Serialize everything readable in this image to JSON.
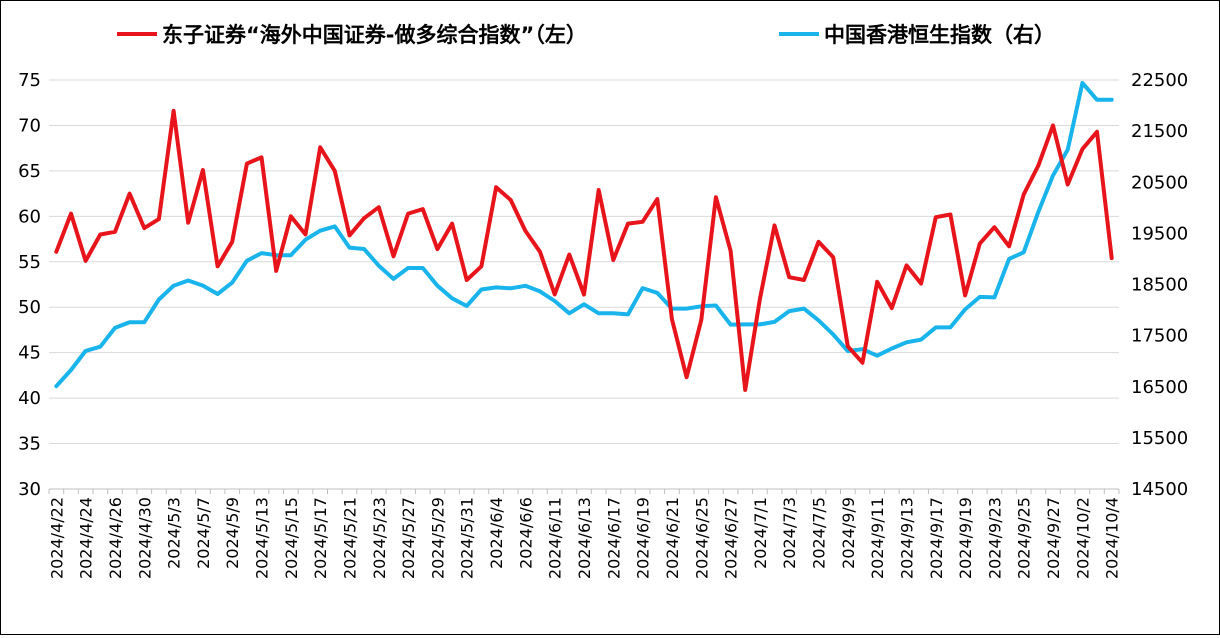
{
  "chart_data": {
    "type": "line",
    "title": "",
    "legend_position": "top",
    "grid": true,
    "colors": {
      "left_series": "#e8141b",
      "right_series": "#19b4ec",
      "grid": "#d9d9d9"
    },
    "x": [
      "2024/4/22",
      "2024/4/23",
      "2024/4/24",
      "2024/4/25",
      "2024/4/26",
      "2024/4/29",
      "2024/4/30",
      "2024/5/2",
      "2024/5/3",
      "2024/5/6",
      "2024/5/7",
      "2024/5/8",
      "2024/5/9",
      "2024/5/10",
      "2024/5/13",
      "2024/5/14",
      "2024/5/15",
      "2024/5/16",
      "2024/5/17",
      "2024/5/20",
      "2024/5/21",
      "2024/5/22",
      "2024/5/23",
      "2024/5/24",
      "2024/5/27",
      "2024/5/28",
      "2024/5/29",
      "2024/5/30",
      "2024/5/31",
      "2024/6/3",
      "2024/6/4",
      "2024/6/5",
      "2024/6/6",
      "2024/6/7",
      "2024/6/11",
      "2024/6/12",
      "2024/6/13",
      "2024/6/14",
      "2024/6/17",
      "2024/6/18",
      "2024/6/19",
      "2024/6/20",
      "2024/6/21",
      "2024/6/24",
      "2024/6/25",
      "2024/6/26",
      "2024/6/27",
      "2024/6/28",
      "2024/7/1",
      "2024/7/2",
      "2024/7/3",
      "2024/7/4",
      "2024/7/5",
      "2024/7/8",
      "2024/9/9",
      "2024/9/10",
      "2024/9/11",
      "2024/9/12",
      "2024/9/13",
      "2024/9/16",
      "2024/9/17",
      "2024/9/18",
      "2024/9/19",
      "2024/9/20",
      "2024/9/23",
      "2024/9/24",
      "2024/9/25",
      "2024/9/26",
      "2024/9/27",
      "2024/9/30",
      "2024/10/2",
      "2024/10/3",
      "2024/10/4"
    ],
    "x_tick_labels": [
      "2024/4/22",
      "2024/4/24",
      "2024/4/26",
      "2024/4/30",
      "2024/5/3",
      "2024/5/7",
      "2024/5/9",
      "2024/5/13",
      "2024/5/15",
      "2024/5/17",
      "2024/5/21",
      "2024/5/23",
      "2024/5/27",
      "2024/5/29",
      "2024/5/31",
      "2024/6/4",
      "2024/6/6",
      "2024/6/11",
      "2024/6/13",
      "2024/6/17",
      "2024/6/19",
      "2024/6/21",
      "2024/6/25",
      "2024/6/27",
      "2024/7/1",
      "2024/7/3",
      "2024/7/5",
      "2024/9/9",
      "2024/9/11",
      "2024/9/13",
      "2024/9/17",
      "2024/9/19",
      "2024/9/23",
      "2024/9/25",
      "2024/9/27",
      "2024/10/2",
      "2024/10/4"
    ],
    "y_left": {
      "min": 30,
      "max": 75,
      "step": 5,
      "ticks": [
        "30",
        "35",
        "40",
        "45",
        "50",
        "55",
        "60",
        "65",
        "70",
        "75"
      ]
    },
    "y_right": {
      "min": 14500,
      "max": 22500,
      "step": 1000,
      "ticks": [
        "14500",
        "15500",
        "16500",
        "17500",
        "18500",
        "19500",
        "20500",
        "21500",
        "22500"
      ]
    },
    "series": [
      {
        "name": "东子证券“海外中国证券-做多综合指数”（左）",
        "axis": "left",
        "values": [
          56.1,
          60.3,
          55.1,
          58.0,
          58.3,
          62.5,
          58.7,
          59.7,
          71.6,
          59.3,
          65.1,
          54.5,
          57.2,
          65.8,
          66.5,
          54.0,
          60.0,
          58.0,
          67.6,
          65.0,
          57.9,
          59.8,
          61.0,
          55.6,
          60.3,
          60.8,
          56.4,
          59.2,
          53.0,
          54.5,
          63.2,
          61.8,
          58.4,
          56.1,
          51.4,
          55.8,
          51.4,
          62.9,
          55.2,
          59.2,
          59.4,
          61.9,
          48.7,
          42.3,
          48.6,
          62.1,
          56.2,
          40.9,
          50.9,
          59.0,
          53.3,
          53.0,
          57.2,
          55.5,
          45.7,
          43.9,
          52.8,
          49.9,
          54.6,
          52.6,
          59.9,
          60.2,
          51.3,
          57.0,
          58.8,
          56.7,
          62.4,
          65.6,
          70.0,
          63.5,
          67.4,
          69.3,
          55.4
        ]
      },
      {
        "name": "中国香港恒生指数（右）",
        "axis": "right",
        "values": [
          16511,
          16828,
          17201,
          17284,
          17651,
          17763,
          17763,
          18207,
          18476,
          18578,
          18479,
          18314,
          18537,
          18964,
          19115,
          19073,
          19073,
          19376,
          19553,
          19636,
          19221,
          19195,
          18868,
          18609,
          18822,
          18822,
          18477,
          18231,
          18079,
          18403,
          18444,
          18425,
          18475,
          18366,
          18177,
          17937,
          18113,
          17936,
          17936,
          17915,
          18430,
          18335,
          18028,
          18028,
          18073,
          18089,
          17716,
          17719,
          17719,
          17769,
          17979,
          18028,
          17799,
          17524,
          17197,
          17234,
          17108,
          17248,
          17369,
          17422,
          17660,
          17660,
          18013,
          18258,
          18247,
          19000,
          19129,
          19924,
          20632,
          21134,
          22444,
          22113,
          22113
        ]
      }
    ]
  }
}
